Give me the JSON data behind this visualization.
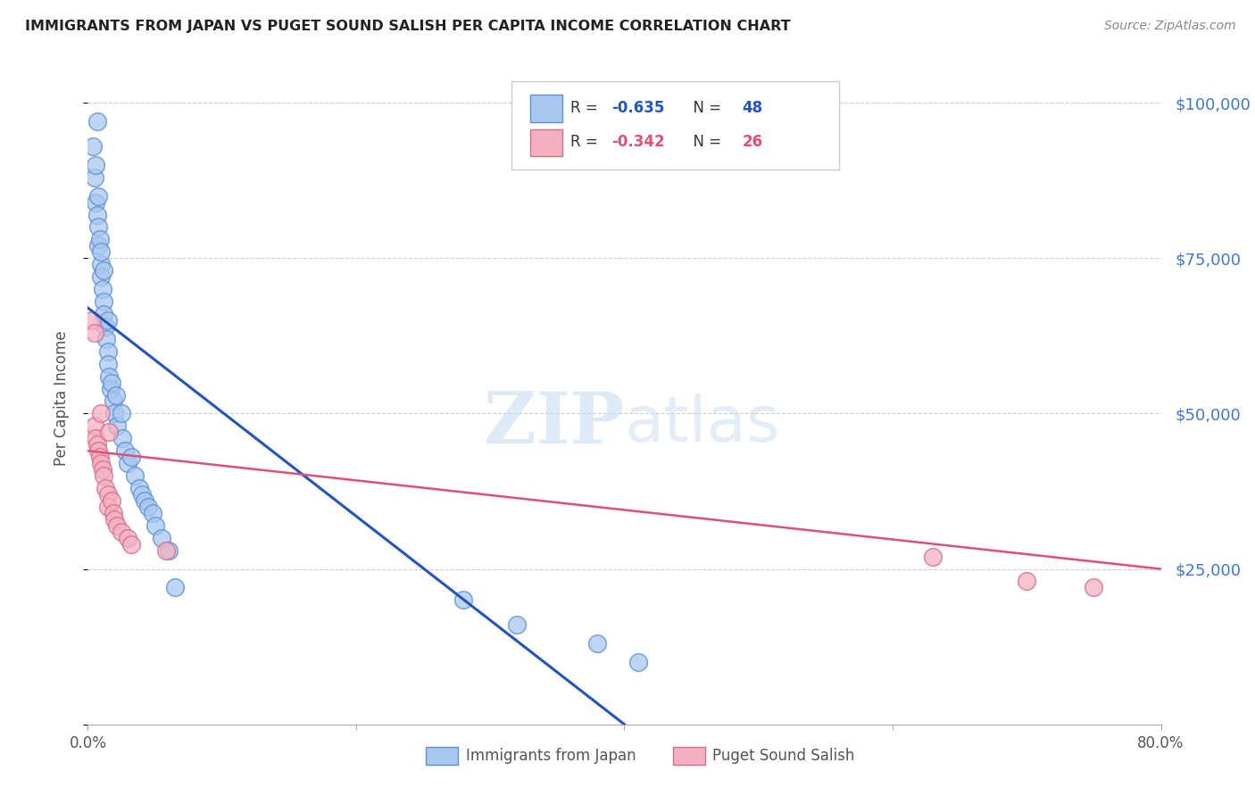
{
  "title": "IMMIGRANTS FROM JAPAN VS PUGET SOUND SALISH PER CAPITA INCOME CORRELATION CHART",
  "source": "Source: ZipAtlas.com",
  "ylabel": "Per Capita Income",
  "watermark_zip": "ZIP",
  "watermark_atlas": "atlas",
  "xlim": [
    0.0,
    0.8
  ],
  "ylim": [
    0,
    105000
  ],
  "yticks": [
    0,
    25000,
    50000,
    75000,
    100000
  ],
  "ytick_labels": [
    "",
    "$25,000",
    "$50,000",
    "$75,000",
    "$100,000"
  ],
  "xticks": [
    0.0,
    0.2,
    0.4,
    0.6,
    0.8
  ],
  "xtick_labels": [
    "0.0%",
    "",
    "",
    "",
    "80.0%"
  ],
  "blue_R": -0.635,
  "blue_N": 48,
  "pink_R": -0.342,
  "pink_N": 26,
  "blue_color": "#A8C8F0",
  "pink_color": "#F5B0C0",
  "blue_line_color": "#2255BB",
  "pink_line_color": "#E05075",
  "blue_edge_color": "#6090D0",
  "pink_edge_color": "#D07090",
  "legend_blue_label": "Immigrants from Japan",
  "legend_pink_label": "Puget Sound Salish",
  "title_color": "#222222",
  "axis_label_color": "#555555",
  "right_tick_color": "#4477CC",
  "grid_color": "#CCCCCC",
  "blue_x": [
    0.004,
    0.005,
    0.006,
    0.006,
    0.007,
    0.007,
    0.008,
    0.008,
    0.008,
    0.009,
    0.01,
    0.01,
    0.01,
    0.011,
    0.012,
    0.012,
    0.012,
    0.013,
    0.014,
    0.015,
    0.015,
    0.015,
    0.016,
    0.017,
    0.018,
    0.019,
    0.02,
    0.021,
    0.022,
    0.025,
    0.026,
    0.028,
    0.03,
    0.032,
    0.035,
    0.038,
    0.04,
    0.042,
    0.045,
    0.048,
    0.05,
    0.055,
    0.06,
    0.065,
    0.28,
    0.32,
    0.38,
    0.41
  ],
  "blue_y": [
    93000,
    88000,
    90000,
    84000,
    97000,
    82000,
    80000,
    77000,
    85000,
    78000,
    74000,
    72000,
    76000,
    70000,
    68000,
    66000,
    73000,
    64000,
    62000,
    60000,
    58000,
    65000,
    56000,
    54000,
    55000,
    52000,
    50000,
    53000,
    48000,
    50000,
    46000,
    44000,
    42000,
    43000,
    40000,
    38000,
    37000,
    36000,
    35000,
    34000,
    32000,
    30000,
    28000,
    22000,
    20000,
    16000,
    13000,
    10000
  ],
  "pink_x": [
    0.003,
    0.005,
    0.005,
    0.006,
    0.007,
    0.008,
    0.009,
    0.01,
    0.01,
    0.011,
    0.012,
    0.013,
    0.015,
    0.015,
    0.016,
    0.018,
    0.019,
    0.02,
    0.022,
    0.025,
    0.03,
    0.032,
    0.058,
    0.63,
    0.7,
    0.75
  ],
  "pink_y": [
    65000,
    63000,
    48000,
    46000,
    45000,
    44000,
    43000,
    42000,
    50000,
    41000,
    40000,
    38000,
    37000,
    35000,
    47000,
    36000,
    34000,
    33000,
    32000,
    31000,
    30000,
    29000,
    28000,
    27000,
    23000,
    22000
  ],
  "blue_trend_x": [
    0.0,
    0.4
  ],
  "blue_trend_y": [
    67000,
    0
  ],
  "pink_trend_x": [
    0.0,
    0.8
  ],
  "pink_trend_y": [
    44000,
    25000
  ]
}
